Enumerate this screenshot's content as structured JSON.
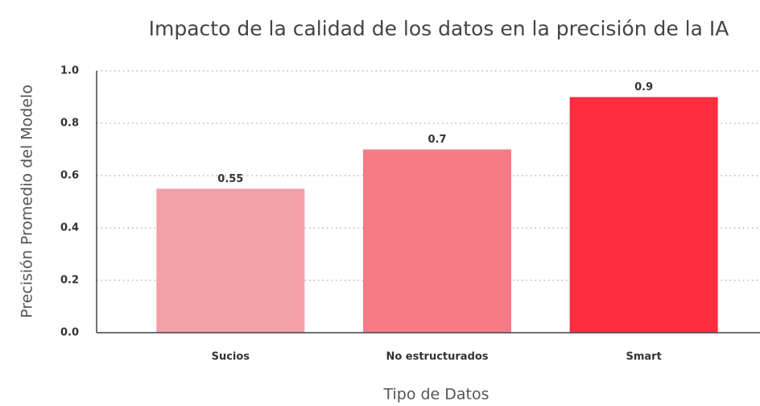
{
  "chart_data": {
    "type": "bar",
    "title": "Impacto de la calidad de los datos en la precisión de la IA",
    "x_label": "Tipo de Datos",
    "y_label": "Precisión Promedio del Modelo",
    "categories": [
      "Sucios",
      "No estructurados",
      "Smart"
    ],
    "values": [
      0.55,
      0.7,
      0.9
    ],
    "colors": [
      "#f4a0a8",
      "#f77b86",
      "#ff2d40"
    ],
    "ylim": [
      0,
      1
    ],
    "yticks": [
      {
        "value": 0,
        "label": "0.0"
      },
      0.2,
      0.4,
      0.6,
      0.8,
      {
        "value": 1,
        "label": "1.0"
      }
    ],
    "grid": true
  }
}
